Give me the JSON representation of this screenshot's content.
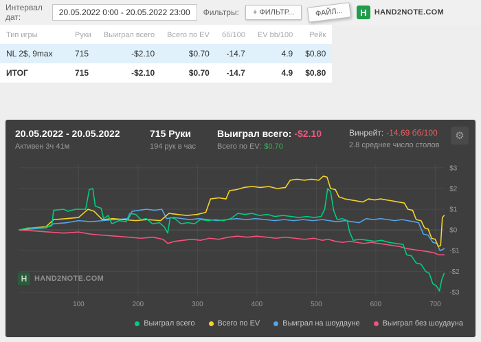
{
  "colors": {
    "positive": "#00a651",
    "negative": "#e8453c",
    "panel_negative_pink": "#f2557e",
    "panel_negative_red": "#e86060",
    "panel_positive": "#35b559",
    "brand_green": "#1f9d49"
  },
  "topbar": {
    "interval_label": "Интервал дат:",
    "interval_value": "20.05.2022 0:00 - 20.05.2022 23:00",
    "filters_label": "Фильтры:",
    "add_filter_button": "+ ФИЛЬТР...",
    "file_button": "ФАЙЛ...",
    "brand": "HAND2NOTE.COM"
  },
  "table": {
    "headers": [
      "Тип игры",
      "Руки",
      "Выиграл всего",
      "Всего по EV",
      "бб/100",
      "EV bb/100",
      "Рейк"
    ],
    "rows": [
      {
        "cells": [
          "NL 2$, 9max",
          "715",
          "-$2.10",
          "$0.70",
          "-14.7",
          "4.9",
          "$0.80"
        ]
      },
      {
        "cells": [
          "ИТОГ",
          "715",
          "-$2.10",
          "$0.70",
          "-14.7",
          "4.9",
          "$0.80"
        ]
      }
    ]
  },
  "panel": {
    "date_range": "20.05.2022 - 20.05.2022",
    "active_time": "Активен 3ч 41м",
    "hands_total": "715 Руки",
    "hands_per_hour": "194 рук в час",
    "won_label": "Выиграл всего:",
    "won_value": "-$2.10",
    "ev_label": "Всего по EV:",
    "ev_value": "$0.70",
    "winrate_label": "Винрейт:",
    "winrate_value": "-14.69 бб/100",
    "avg_tables": "2.8 среднее число столов",
    "watermark": "HAND2NOTE.COM"
  },
  "chart_data": {
    "type": "line",
    "xlabel": "",
    "ylabel": "",
    "xlim": [
      0,
      715
    ],
    "ylim": [
      -3.2,
      3.2
    ],
    "grid": true,
    "legend_position": "bottom",
    "x_ticks": [
      100,
      200,
      300,
      400,
      500,
      600,
      700
    ],
    "y_ticks": [
      {
        "value": 3,
        "label": "$3"
      },
      {
        "value": 2,
        "label": "$2"
      },
      {
        "value": 1,
        "label": "$1"
      },
      {
        "value": 0,
        "label": "$0"
      },
      {
        "value": -1,
        "label": "-$1"
      },
      {
        "value": -2,
        "label": "-$2"
      },
      {
        "value": -3,
        "label": "-$3"
      }
    ],
    "series": [
      {
        "name": "Выиграл всего",
        "color": "#00cd7e",
        "points": [
          [
            0,
            0
          ],
          [
            15,
            0.1
          ],
          [
            40,
            0.1
          ],
          [
            55,
            0.2
          ],
          [
            58,
            0.95
          ],
          [
            75,
            1.0
          ],
          [
            82,
            0.9
          ],
          [
            95,
            1.0
          ],
          [
            112,
            1.0
          ],
          [
            118,
            1.95
          ],
          [
            124,
            2.0
          ],
          [
            128,
            1.15
          ],
          [
            138,
            1.05
          ],
          [
            142,
            0.55
          ],
          [
            150,
            0.7
          ],
          [
            156,
            0.3
          ],
          [
            168,
            0.45
          ],
          [
            180,
            0.4
          ],
          [
            186,
            0.8
          ],
          [
            196,
            0.75
          ],
          [
            205,
            0.5
          ],
          [
            214,
            0.55
          ],
          [
            224,
            0.3
          ],
          [
            236,
            0.35
          ],
          [
            244,
            0.15
          ],
          [
            250,
            -0.15
          ],
          [
            254,
            0.6
          ],
          [
            262,
            0.55
          ],
          [
            272,
            0.3
          ],
          [
            284,
            0.35
          ],
          [
            295,
            0.3
          ],
          [
            305,
            0.5
          ],
          [
            318,
            0.45
          ],
          [
            330,
            0.5
          ],
          [
            344,
            0.45
          ],
          [
            356,
            0.55
          ],
          [
            368,
            0.8
          ],
          [
            380,
            0.75
          ],
          [
            392,
            0.8
          ],
          [
            404,
            0.7
          ],
          [
            418,
            0.75
          ],
          [
            430,
            0.65
          ],
          [
            444,
            0.7
          ],
          [
            458,
            0.65
          ],
          [
            470,
            0.6
          ],
          [
            484,
            0.65
          ],
          [
            496,
            0.6
          ],
          [
            508,
            0.65
          ],
          [
            514,
            1.0
          ],
          [
            519,
            2.0
          ],
          [
            524,
            1.85
          ],
          [
            529,
            0.95
          ],
          [
            535,
            0.5
          ],
          [
            544,
            0.55
          ],
          [
            552,
            0.45
          ],
          [
            556,
            -0.1
          ],
          [
            562,
            -0.5
          ],
          [
            574,
            -0.45
          ],
          [
            586,
            -0.5
          ],
          [
            598,
            -0.55
          ],
          [
            610,
            -0.5
          ],
          [
            622,
            -0.6
          ],
          [
            634,
            -0.65
          ],
          [
            646,
            -0.7
          ],
          [
            652,
            -1.2
          ],
          [
            660,
            -1.25
          ],
          [
            668,
            -1.6
          ],
          [
            676,
            -1.65
          ],
          [
            684,
            -2.0
          ],
          [
            690,
            -2.1
          ],
          [
            696,
            -2.6
          ],
          [
            702,
            -2.7
          ],
          [
            707,
            -2.95
          ],
          [
            711,
            -2.4
          ],
          [
            715,
            -2.1
          ]
        ]
      },
      {
        "name": "Всего по EV",
        "color": "#f5d327",
        "points": [
          [
            0,
            0
          ],
          [
            20,
            0.1
          ],
          [
            45,
            0.15
          ],
          [
            58,
            0.5
          ],
          [
            80,
            0.55
          ],
          [
            100,
            0.6
          ],
          [
            116,
            1.0
          ],
          [
            126,
            0.9
          ],
          [
            140,
            0.5
          ],
          [
            158,
            0.55
          ],
          [
            176,
            0.5
          ],
          [
            196,
            0.45
          ],
          [
            216,
            0.5
          ],
          [
            238,
            0.45
          ],
          [
            252,
            0.8
          ],
          [
            266,
            0.75
          ],
          [
            282,
            0.7
          ],
          [
            300,
            0.75
          ],
          [
            314,
            0.85
          ],
          [
            322,
            1.5
          ],
          [
            336,
            1.55
          ],
          [
            348,
            1.5
          ],
          [
            354,
            1.9
          ],
          [
            366,
            1.95
          ],
          [
            378,
            2.05
          ],
          [
            392,
            2.1
          ],
          [
            406,
            2.05
          ],
          [
            420,
            2.1
          ],
          [
            434,
            2.0
          ],
          [
            448,
            2.05
          ],
          [
            456,
            2.4
          ],
          [
            468,
            2.45
          ],
          [
            480,
            2.4
          ],
          [
            492,
            2.45
          ],
          [
            504,
            2.4
          ],
          [
            512,
            2.6
          ],
          [
            518,
            2.55
          ],
          [
            524,
            2.0
          ],
          [
            532,
            1.95
          ],
          [
            538,
            1.6
          ],
          [
            548,
            1.5
          ],
          [
            558,
            1.45
          ],
          [
            568,
            1.4
          ],
          [
            578,
            1.35
          ],
          [
            588,
            1.5
          ],
          [
            598,
            1.45
          ],
          [
            608,
            1.5
          ],
          [
            618,
            1.45
          ],
          [
            628,
            1.4
          ],
          [
            638,
            1.35
          ],
          [
            648,
            1.3
          ],
          [
            654,
            1.0
          ],
          [
            662,
            0.95
          ],
          [
            668,
            0.5
          ],
          [
            676,
            0.45
          ],
          [
            682,
            0.1
          ],
          [
            688,
            0.05
          ],
          [
            694,
            -0.4
          ],
          [
            700,
            -0.45
          ],
          [
            705,
            -0.8
          ],
          [
            709,
            -0.75
          ],
          [
            712,
            0.6
          ],
          [
            715,
            0.7
          ]
        ]
      },
      {
        "name": "Выиграл на шоудауне",
        "color": "#55a4e6",
        "points": [
          [
            0,
            0
          ],
          [
            20,
            0.05
          ],
          [
            45,
            0.1
          ],
          [
            58,
            0.3
          ],
          [
            80,
            0.35
          ],
          [
            100,
            0.45
          ],
          [
            120,
            0.4
          ],
          [
            140,
            0.45
          ],
          [
            162,
            0.5
          ],
          [
            184,
            0.55
          ],
          [
            190,
            0.9
          ],
          [
            202,
            0.95
          ],
          [
            214,
            1.0
          ],
          [
            228,
            0.95
          ],
          [
            240,
            1.0
          ],
          [
            248,
            0.55
          ],
          [
            260,
            0.6
          ],
          [
            274,
            0.55
          ],
          [
            288,
            0.5
          ],
          [
            302,
            0.55
          ],
          [
            318,
            0.5
          ],
          [
            334,
            0.45
          ],
          [
            350,
            0.5
          ],
          [
            366,
            0.55
          ],
          [
            382,
            0.5
          ],
          [
            398,
            0.55
          ],
          [
            414,
            0.5
          ],
          [
            430,
            0.45
          ],
          [
            446,
            0.5
          ],
          [
            462,
            0.45
          ],
          [
            478,
            0.5
          ],
          [
            494,
            0.45
          ],
          [
            510,
            0.5
          ],
          [
            522,
            0.45
          ],
          [
            534,
            0.4
          ],
          [
            548,
            0.45
          ],
          [
            560,
            0.4
          ],
          [
            572,
            0.35
          ],
          [
            584,
            0.55
          ],
          [
            596,
            0.5
          ],
          [
            608,
            0.55
          ],
          [
            620,
            0.5
          ],
          [
            632,
            0.45
          ],
          [
            644,
            0.5
          ],
          [
            654,
            0.45
          ],
          [
            664,
            0.4
          ],
          [
            672,
            0.35
          ],
          [
            680,
            -0.2
          ],
          [
            688,
            -0.25
          ],
          [
            696,
            -0.6
          ],
          [
            703,
            -0.65
          ],
          [
            708,
            -1.0
          ],
          [
            712,
            -0.95
          ],
          [
            715,
            -0.9
          ]
        ]
      },
      {
        "name": "Выиграл без шоудауна",
        "color": "#f4527c",
        "points": [
          [
            0,
            0
          ],
          [
            25,
            -0.05
          ],
          [
            50,
            -0.1
          ],
          [
            75,
            -0.15
          ],
          [
            100,
            -0.1
          ],
          [
            120,
            -0.2
          ],
          [
            140,
            -0.25
          ],
          [
            162,
            -0.3
          ],
          [
            184,
            -0.35
          ],
          [
            205,
            -0.4
          ],
          [
            225,
            -0.35
          ],
          [
            242,
            -0.45
          ],
          [
            250,
            -0.65
          ],
          [
            262,
            -0.55
          ],
          [
            276,
            -0.5
          ],
          [
            290,
            -0.45
          ],
          [
            305,
            -0.5
          ],
          [
            320,
            -0.4
          ],
          [
            336,
            -0.45
          ],
          [
            352,
            -0.35
          ],
          [
            368,
            -0.3
          ],
          [
            384,
            -0.35
          ],
          [
            400,
            -0.3
          ],
          [
            416,
            -0.35
          ],
          [
            432,
            -0.4
          ],
          [
            448,
            -0.35
          ],
          [
            464,
            -0.4
          ],
          [
            480,
            -0.45
          ],
          [
            496,
            -0.4
          ],
          [
            510,
            -0.5
          ],
          [
            520,
            -0.45
          ],
          [
            532,
            -0.55
          ],
          [
            544,
            -0.6
          ],
          [
            556,
            -0.55
          ],
          [
            568,
            -0.6
          ],
          [
            580,
            -0.65
          ],
          [
            592,
            -0.6
          ],
          [
            604,
            -0.65
          ],
          [
            616,
            -0.7
          ],
          [
            628,
            -0.75
          ],
          [
            640,
            -0.8
          ],
          [
            652,
            -0.9
          ],
          [
            664,
            -0.95
          ],
          [
            676,
            -1.0
          ],
          [
            688,
            -1.05
          ],
          [
            698,
            -1.1
          ],
          [
            706,
            -1.2
          ],
          [
            715,
            -1.2
          ]
        ]
      }
    ]
  }
}
